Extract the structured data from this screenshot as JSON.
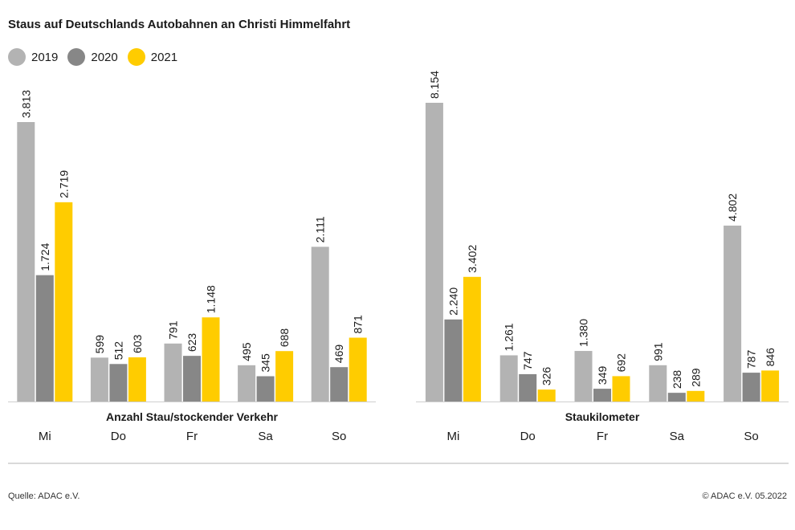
{
  "title": "Staus auf Deutschlands Autobahnen an Christi Himmelfahrt",
  "legend": [
    {
      "label": "2019",
      "color": "#b3b3b3"
    },
    {
      "label": "2020",
      "color": "#878787"
    },
    {
      "label": "2021",
      "color": "#ffcc00"
    }
  ],
  "footer": {
    "source": "Quelle: ADAC e.V.",
    "copyright": "© ADAC e.V. 05.2022"
  },
  "chart_data": [
    {
      "type": "bar",
      "title": "Anzahl Stau/stockender Verkehr",
      "categories": [
        "Mi",
        "Do",
        "Fr",
        "Sa",
        "So"
      ],
      "ylim": [
        0,
        3813
      ],
      "series": [
        {
          "name": "2019",
          "values": [
            3813,
            599,
            791,
            495,
            2111
          ],
          "labels": [
            "3.813",
            "599",
            "791",
            "495",
            "2.111"
          ]
        },
        {
          "name": "2020",
          "values": [
            1724,
            512,
            623,
            345,
            469
          ],
          "labels": [
            "1.724",
            "512",
            "623",
            "345",
            "469"
          ]
        },
        {
          "name": "2021",
          "values": [
            2719,
            603,
            1148,
            688,
            871
          ],
          "labels": [
            "2.719",
            "603",
            "1.148",
            "688",
            "871"
          ]
        }
      ]
    },
    {
      "type": "bar",
      "title": "Staukilometer",
      "categories": [
        "Mi",
        "Do",
        "Fr",
        "Sa",
        "So"
      ],
      "ylim": [
        0,
        8154
      ],
      "series": [
        {
          "name": "2019",
          "values": [
            8154,
            1261,
            1380,
            991,
            4802
          ],
          "labels": [
            "8.154",
            "1.261",
            "1.380",
            "991",
            "4.802"
          ]
        },
        {
          "name": "2020",
          "values": [
            2240,
            747,
            349,
            238,
            787
          ],
          "labels": [
            "2.240",
            "747",
            "349",
            "238",
            "787"
          ]
        },
        {
          "name": "2021",
          "values": [
            3402,
            326,
            692,
            289,
            846
          ],
          "labels": [
            "3.402",
            "326",
            "692",
            "289",
            "846"
          ]
        }
      ]
    }
  ]
}
